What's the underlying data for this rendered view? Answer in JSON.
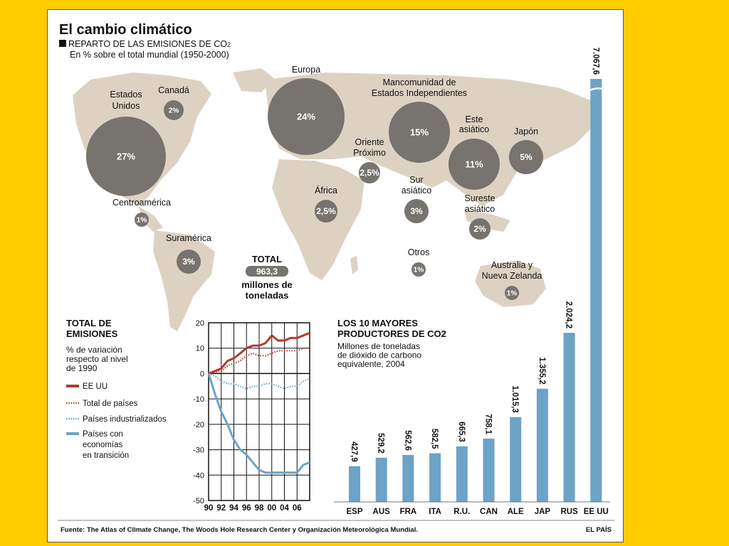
{
  "page": {
    "title": "El cambio climático",
    "subtitle": "REPARTO DE LAS EMISIONES DE CO",
    "subtitle_sub": "2",
    "subtitle2": "En % sobre el total mundial (1950-2000)",
    "source": "Fuente: The Atlas of Climate Change, The Woods Hole Research Center y Organización Meteorológica Mundial.",
    "credit": "EL PAÍS",
    "total_label": "TOTAL",
    "total_value": "963,3",
    "total_unit_1": "millones de",
    "total_unit_2": "toneladas"
  },
  "colors": {
    "background": "#ffcc00",
    "map_land": "#ddd2c2",
    "bubble": "#77736e",
    "bar": "#6ca3c6",
    "red": "#b33a2c",
    "blue": "#6aa4c8"
  },
  "chart_data": [
    {
      "type": "bubble",
      "title": "REPARTO DE LAS EMISIONES DE CO2",
      "subtitle": "En % sobre el total mundial (1950-2000)",
      "regions": [
        {
          "name": "Estados Unidos",
          "value": 27,
          "label": "27%",
          "name_lines": [
            "Estados",
            "Unidos"
          ]
        },
        {
          "name": "Canadá",
          "value": 2,
          "label": "2%",
          "name_lines": [
            "Canadá"
          ]
        },
        {
          "name": "Europa",
          "value": 24,
          "label": "24%",
          "name_lines": [
            "Europa"
          ]
        },
        {
          "name": "Mancomunidad de Estados Independientes",
          "value": 15,
          "label": "15%",
          "name_lines": [
            "Mancomunidad de",
            "Estados Independientes"
          ]
        },
        {
          "name": "Este asiático",
          "value": 11,
          "label": "11%",
          "name_lines": [
            "Este",
            "asiático"
          ]
        },
        {
          "name": "Japón",
          "value": 5,
          "label": "5%",
          "name_lines": [
            "Japón"
          ]
        },
        {
          "name": "Oriente Próximo",
          "value": 2.5,
          "label": "2,5%",
          "name_lines": [
            "Oriente",
            "Próximo"
          ]
        },
        {
          "name": "África",
          "value": 2.5,
          "label": "2,5%",
          "name_lines": [
            "África"
          ]
        },
        {
          "name": "Sur asiático",
          "value": 3,
          "label": "3%",
          "name_lines": [
            "Sur",
            "asiático"
          ]
        },
        {
          "name": "Sureste asiático",
          "value": 2,
          "label": "2%",
          "name_lines": [
            "Sureste",
            "asiático"
          ]
        },
        {
          "name": "Centroamérica",
          "value": 1,
          "label": "1%",
          "name_lines": [
            "Centroamérica"
          ]
        },
        {
          "name": "Suramérica",
          "value": 3,
          "label": "3%",
          "name_lines": [
            "Suramérica"
          ]
        },
        {
          "name": "Otros",
          "value": 1,
          "label": "1%",
          "name_lines": [
            "Otros"
          ]
        },
        {
          "name": "Australia y Nueva Zelanda",
          "value": 1,
          "label": "1%",
          "name_lines": [
            "Australia y",
            "Nueva Zelanda"
          ]
        }
      ]
    },
    {
      "type": "line",
      "title_lines": [
        "TOTAL DE",
        "EMISIONES"
      ],
      "subtitle_lines": [
        "% de variación",
        "respecto al nivel",
        "de 1990"
      ],
      "x": [
        1990,
        1991,
        1992,
        1993,
        1994,
        1995,
        1996,
        1997,
        1998,
        1999,
        2000,
        2001,
        2002,
        2003,
        2004,
        2005,
        2006
      ],
      "xticks": [
        "90",
        "92",
        "94",
        "96",
        "98",
        "00",
        "04",
        "06"
      ],
      "ylim": [
        -50,
        20
      ],
      "yticks": [
        20,
        10,
        0,
        -10,
        -20,
        -30,
        -40,
        -50
      ],
      "grid": true,
      "series": [
        {
          "name": "EE UU",
          "style": "solid",
          "color": "#b33a2c",
          "values": [
            0,
            1,
            2,
            5,
            6,
            8,
            10,
            11,
            11,
            12,
            15,
            13,
            13,
            14,
            14,
            15,
            16
          ]
        },
        {
          "name": "Total de países",
          "style": "dotted",
          "color": "#b33a2c",
          "values": [
            0,
            0.5,
            1,
            3,
            4,
            5,
            7,
            8,
            7,
            7,
            8,
            9,
            9,
            9,
            9,
            10,
            10
          ]
        },
        {
          "name": "Países industrializados",
          "style": "dotted",
          "color": "#6aa4c8",
          "values": [
            0,
            -1,
            -3,
            -4,
            -4,
            -5,
            -6,
            -5,
            -5,
            -4,
            -4,
            -5,
            -6,
            -5,
            -5,
            -3,
            -2
          ]
        },
        {
          "name": "Países con economías en transición",
          "name_lines": [
            "Países con",
            "economías",
            "en transición"
          ],
          "style": "solid",
          "color": "#6aa4c8",
          "values": [
            0,
            -8,
            -15,
            -20,
            -26,
            -30,
            -32,
            -35,
            -38,
            -39,
            -39,
            -39,
            -39,
            -39,
            -39,
            -36,
            -35
          ]
        }
      ]
    },
    {
      "type": "bar",
      "title_lines": [
        "LOS 10 MAYORES",
        "PRODUCTORES DE CO2"
      ],
      "subtitle_lines": [
        "Millones de toneladas",
        "de dióxido de carbono",
        "equivalente, 2004"
      ],
      "categories": [
        "ESP",
        "AUS",
        "FRA",
        "ITA",
        "R.U.",
        "CAN",
        "ALE",
        "JAP",
        "RUS",
        "EE UU"
      ],
      "values": [
        427.9,
        529.2,
        562.6,
        582.5,
        665.3,
        758.1,
        1015.3,
        1355.2,
        2024.2,
        7067.6
      ],
      "labels": [
        "427,9",
        "529,2",
        "562,6",
        "582,5",
        "665,3",
        "758,1",
        "1.015,3",
        "1.355,2",
        "2.024,2",
        "7.067,6"
      ],
      "axis_break": true
    }
  ]
}
